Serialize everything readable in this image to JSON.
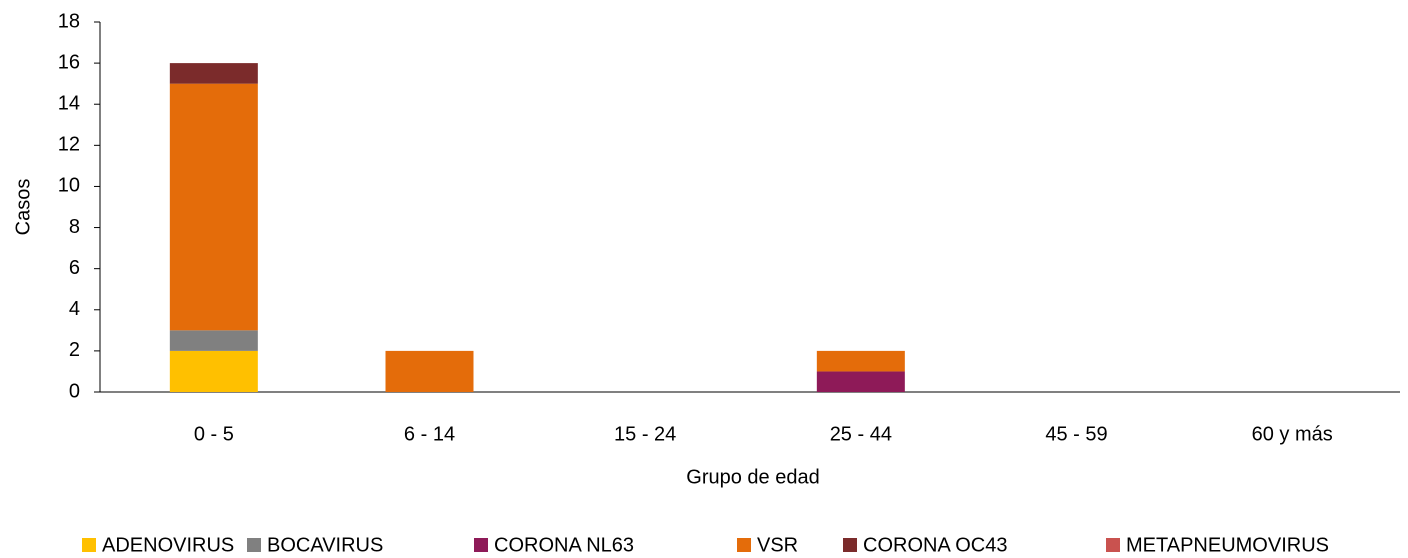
{
  "chart_data": {
    "type": "stacked_bar",
    "xlabel": "Grupo de edad",
    "ylabel": "Casos",
    "categories": [
      "0 - 5",
      "6 - 14",
      "15 - 24",
      "25 - 44",
      "45 - 59",
      "60 y más"
    ],
    "series": [
      {
        "name": "ADENOVIRUS",
        "color": "#ffc000",
        "values": [
          2,
          0,
          0,
          0,
          0,
          0
        ]
      },
      {
        "name": "BOCAVIRUS",
        "color": "#808080",
        "values": [
          1,
          0,
          0,
          0,
          0,
          0
        ]
      },
      {
        "name": "CORONA NL63",
        "color": "#8e1a58",
        "values": [
          0,
          0,
          0,
          1,
          0,
          0
        ]
      },
      {
        "name": "VSR",
        "color": "#e46c0a",
        "values": [
          12,
          2,
          0,
          1,
          0,
          0
        ]
      },
      {
        "name": "CORONA OC43",
        "color": "#7b2b2b",
        "values": [
          1,
          0,
          0,
          0,
          0,
          0
        ]
      },
      {
        "name": "METAPNEUMOVIRUS",
        "color": "#c9524f",
        "values": [
          0,
          0,
          0,
          0,
          0,
          0
        ]
      }
    ],
    "ylim": [
      0,
      18
    ],
    "yticks": [
      0,
      2,
      4,
      6,
      8,
      10,
      12,
      14,
      16,
      18
    ],
    "grid": false,
    "legend": "bottom"
  }
}
